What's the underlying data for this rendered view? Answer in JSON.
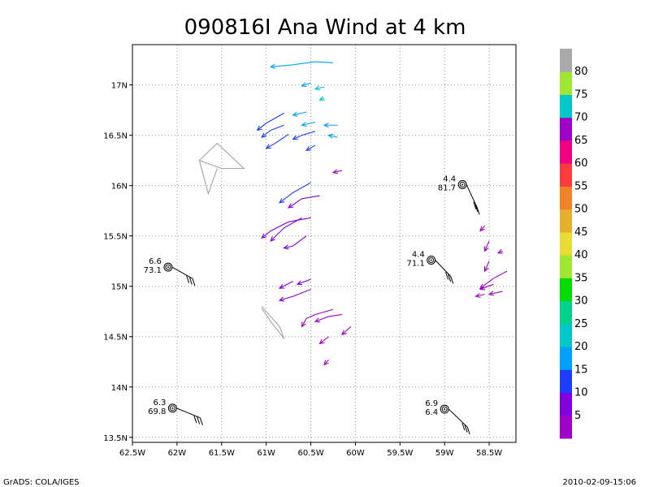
{
  "chart_data": {
    "type": "scatter",
    "title": "090816I Ana Wind at 4 km",
    "xlabel": "",
    "ylabel": "",
    "xlim": [
      -62.5,
      -58.2
    ],
    "ylim": [
      13.45,
      17.4
    ],
    "x_ticks": [
      -62.5,
      -62,
      -61.5,
      -61,
      -60.5,
      -60,
      -59.5,
      -59,
      -58.5
    ],
    "x_tick_labels": [
      "62.5W",
      "62W",
      "61.5W",
      "61W",
      "60.5W",
      "60W",
      "59.5W",
      "59W",
      "58.5W"
    ],
    "y_ticks": [
      13.5,
      14,
      14.5,
      15,
      15.5,
      16,
      16.5,
      17
    ],
    "y_tick_labels": [
      "13.5N",
      "14N",
      "14.5N",
      "15N",
      "15.5N",
      "16N",
      "16.5N",
      "17N"
    ],
    "grid": true,
    "colorbar": {
      "labels": [
        "5",
        "10",
        "15",
        "20",
        "25",
        "30",
        "35",
        "40",
        "45",
        "50",
        "55",
        "60",
        "65",
        "70",
        "75",
        "80"
      ],
      "colors": [
        "#a000c8",
        "#8200dc",
        "#1e3cff",
        "#00a0ff",
        "#00c8c8",
        "#00d28c",
        "#00dc00",
        "#a0e632",
        "#e6dc32",
        "#e6af2d",
        "#f08228",
        "#fa3c3c",
        "#f00082",
        "#a000c8",
        "#00c8c8",
        "#a0e632",
        "#aaaaaa"
      ]
    },
    "wind_tracks": [
      {
        "points": [
          [
            -60.25,
            17.22
          ],
          [
            -60.45,
            17.23
          ],
          [
            -60.7,
            17.2
          ],
          [
            -60.95,
            17.18
          ]
        ],
        "color": "#00a0ff"
      },
      {
        "points": [
          [
            -60.5,
            17.02
          ],
          [
            -60.6,
            16.99
          ]
        ],
        "color": "#00a0ff"
      },
      {
        "points": [
          [
            -60.35,
            16.98
          ],
          [
            -60.45,
            16.96
          ]
        ],
        "color": "#00c8c8"
      },
      {
        "points": [
          [
            -60.35,
            16.87
          ],
          [
            -60.4,
            16.85
          ]
        ],
        "color": "#00c8c8"
      },
      {
        "points": [
          [
            -60.8,
            16.72
          ],
          [
            -61.0,
            16.62
          ],
          [
            -61.1,
            16.55
          ]
        ],
        "color": "#1e3cff"
      },
      {
        "points": [
          [
            -60.55,
            16.73
          ],
          [
            -60.7,
            16.7
          ]
        ],
        "color": "#00a0ff"
      },
      {
        "points": [
          [
            -60.8,
            16.6
          ],
          [
            -60.95,
            16.55
          ],
          [
            -61.05,
            16.48
          ]
        ],
        "color": "#1e3cff"
      },
      {
        "points": [
          [
            -60.45,
            16.63
          ],
          [
            -60.6,
            16.6
          ]
        ],
        "color": "#00a0ff"
      },
      {
        "points": [
          [
            -60.2,
            16.6
          ],
          [
            -60.35,
            16.6
          ]
        ],
        "color": "#00a0ff"
      },
      {
        "points": [
          [
            -60.75,
            16.51
          ],
          [
            -60.9,
            16.42
          ],
          [
            -61.0,
            16.37
          ]
        ],
        "color": "#1e3cff"
      },
      {
        "points": [
          [
            -60.45,
            16.54
          ],
          [
            -60.6,
            16.5
          ],
          [
            -60.7,
            16.46
          ]
        ],
        "color": "#1e3cff"
      },
      {
        "points": [
          [
            -60.2,
            16.48
          ],
          [
            -60.3,
            16.5
          ]
        ],
        "color": "#00a0ff"
      },
      {
        "points": [
          [
            -60.45,
            16.4
          ],
          [
            -60.55,
            16.35
          ]
        ],
        "color": "#1e3cff"
      },
      {
        "points": [
          [
            -60.15,
            16.15
          ],
          [
            -60.25,
            16.13
          ]
        ],
        "color": "#a000c8"
      },
      {
        "points": [
          [
            -60.5,
            16.03
          ],
          [
            -60.7,
            15.93
          ],
          [
            -60.85,
            15.83
          ]
        ],
        "color": "#1e3cff"
      },
      {
        "points": [
          [
            -60.4,
            15.9
          ],
          [
            -60.6,
            15.87
          ],
          [
            -60.75,
            15.78
          ]
        ],
        "color": "#8200dc"
      },
      {
        "points": [
          [
            -60.5,
            15.68
          ],
          [
            -60.75,
            15.64
          ],
          [
            -60.95,
            15.55
          ],
          [
            -61.05,
            15.48
          ]
        ],
        "color": "#8200dc"
      },
      {
        "points": [
          [
            -60.6,
            15.68
          ],
          [
            -60.8,
            15.58
          ],
          [
            -60.95,
            15.45
          ]
        ],
        "color": "#8200dc"
      },
      {
        "points": [
          [
            -60.55,
            15.5
          ],
          [
            -60.7,
            15.4
          ],
          [
            -60.8,
            15.38
          ]
        ],
        "color": "#8200dc"
      },
      {
        "points": [
          [
            -60.7,
            15.05
          ],
          [
            -60.85,
            14.98
          ]
        ],
        "color": "#8200dc"
      },
      {
        "points": [
          [
            -60.5,
            15.07
          ],
          [
            -60.65,
            15.02
          ]
        ],
        "color": "#8200dc"
      },
      {
        "points": [
          [
            -60.5,
            14.97
          ],
          [
            -60.7,
            14.9
          ],
          [
            -60.85,
            14.86
          ]
        ],
        "color": "#8200dc"
      },
      {
        "points": [
          [
            -60.25,
            14.77
          ],
          [
            -60.45,
            14.72
          ],
          [
            -60.55,
            14.68
          ],
          [
            -60.6,
            14.6
          ]
        ],
        "color": "#a000c8"
      },
      {
        "points": [
          [
            -60.15,
            14.72
          ],
          [
            -60.3,
            14.7
          ],
          [
            -60.45,
            14.65
          ]
        ],
        "color": "#a000c8"
      },
      {
        "points": [
          [
            -60.05,
            14.6
          ],
          [
            -60.15,
            14.52
          ]
        ],
        "color": "#a000c8"
      },
      {
        "points": [
          [
            -60.3,
            14.5
          ],
          [
            -60.4,
            14.43
          ]
        ],
        "color": "#a000c8"
      },
      {
        "points": [
          [
            -60.3,
            14.27
          ],
          [
            -60.35,
            14.22
          ]
        ],
        "color": "#a000c8"
      },
      {
        "points": [
          [
            -58.55,
            15.6
          ],
          [
            -58.6,
            15.55
          ]
        ],
        "color": "#a000c8"
      },
      {
        "points": [
          [
            -58.5,
            15.45
          ],
          [
            -58.55,
            15.35
          ]
        ],
        "color": "#a000c8"
      },
      {
        "points": [
          [
            -58.35,
            15.35
          ],
          [
            -58.4,
            15.33
          ]
        ],
        "color": "#a000c8"
      },
      {
        "points": [
          [
            -58.5,
            15.25
          ],
          [
            -58.55,
            15.15
          ]
        ],
        "color": "#a000c8"
      },
      {
        "points": [
          [
            -58.3,
            15.15
          ],
          [
            -58.45,
            15.08
          ],
          [
            -58.6,
            14.98
          ]
        ],
        "color": "#a000c8"
      },
      {
        "points": [
          [
            -58.45,
            15.02
          ],
          [
            -58.6,
            14.97
          ]
        ],
        "color": "#a000c8"
      },
      {
        "points": [
          [
            -58.35,
            14.95
          ],
          [
            -58.5,
            14.92
          ]
        ],
        "color": "#a000c8"
      },
      {
        "points": [
          [
            -58.55,
            14.92
          ],
          [
            -58.65,
            14.9
          ]
        ],
        "color": "#a000c8"
      }
    ],
    "outlines": [
      {
        "points": [
          [
            -61.75,
            16.25
          ],
          [
            -61.55,
            16.42
          ],
          [
            -61.25,
            16.17
          ],
          [
            -61.5,
            16.17
          ],
          [
            -61.75,
            16.25
          ],
          [
            -61.65,
            15.92
          ],
          [
            -61.55,
            16.17
          ]
        ],
        "color": "#aaaaaa"
      },
      {
        "points": [
          [
            -61.05,
            14.8
          ],
          [
            -60.85,
            14.6
          ],
          [
            -60.8,
            14.48
          ],
          [
            -60.95,
            14.65
          ],
          [
            -61.05,
            14.78
          ]
        ],
        "color": "#aaaaaa"
      }
    ],
    "observations": [
      {
        "lon": -62.1,
        "lat": 15.19,
        "upper": "6.6",
        "lower": "73.1",
        "dx": 30,
        "dy": 14
      },
      {
        "lon": -62.05,
        "lat": 13.79,
        "upper": "6.3",
        "lower": "69.8",
        "dx": 34,
        "dy": 12
      },
      {
        "lon": -58.8,
        "lat": 16.01,
        "upper": "4.4",
        "lower": "81.7",
        "dx": 18,
        "dy": 28
      },
      {
        "lon": -59.15,
        "lat": 15.26,
        "upper": "4.4",
        "lower": "71.1",
        "dx": 24,
        "dy": 20
      },
      {
        "lon": -59.0,
        "lat": 13.78,
        "upper": "6.9",
        "lower": "6.4",
        "dx": 28,
        "dy": 22
      }
    ]
  },
  "footer": {
    "left": "GrADS: COLA/IGES",
    "right": "2010-02-09-15:06"
  }
}
